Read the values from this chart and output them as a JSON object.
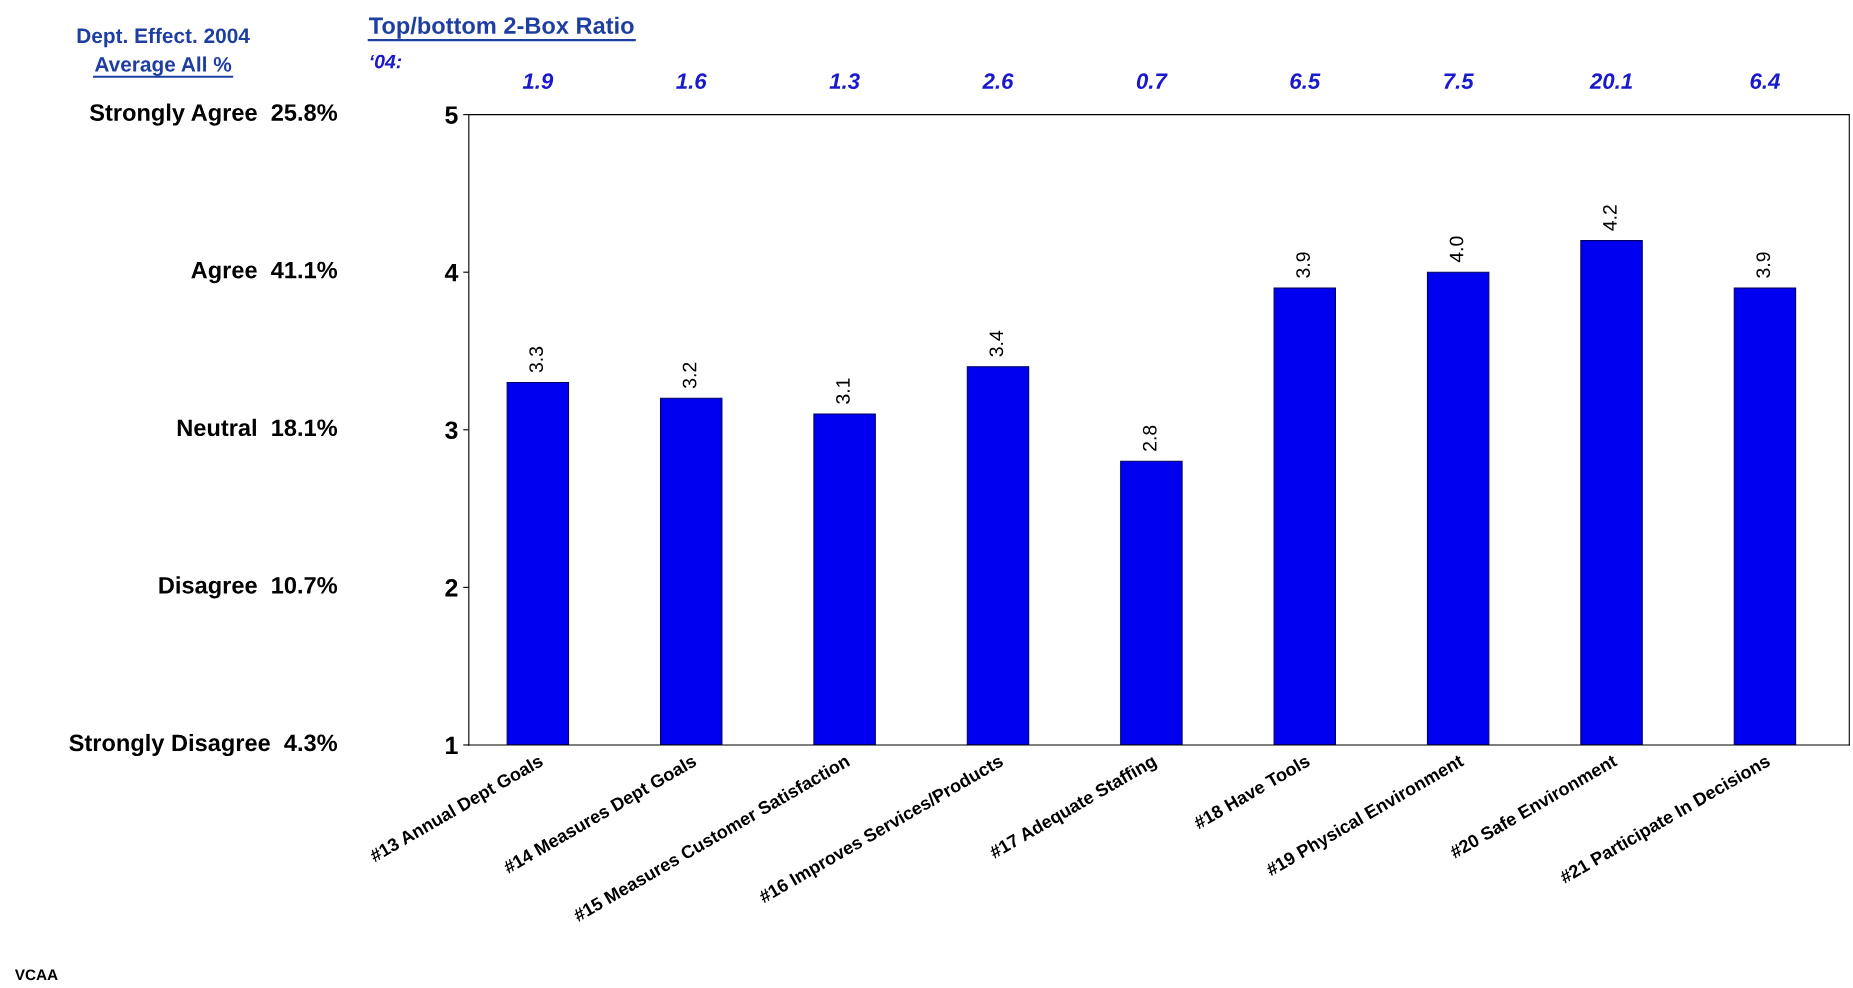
{
  "chart_data": {
    "type": "bar",
    "categories": [
      "#13 Annual Dept Goals",
      "#14 Measures Dept Goals",
      "#15 Measures Customer Satisfaction",
      "#16 Improves Services/Products",
      "#17 Adequate Staffing",
      "#18 Have Tools",
      "#19 Physical Environment",
      "#20 Safe Environment",
      "#21 Participate In Decisions"
    ],
    "values": [
      3.3,
      3.2,
      3.1,
      3.4,
      2.8,
      3.9,
      4.0,
      4.2,
      3.9
    ],
    "value_labels": [
      "3.3",
      "3.2",
      "3.1",
      "3.4",
      "2.8",
      "3.9",
      "4.0",
      "4.2",
      "3.9"
    ],
    "color": "#0000f0",
    "ylim": [
      1,
      5
    ],
    "yticks": [
      1,
      2,
      3,
      4,
      5
    ],
    "grid": false,
    "legend": false,
    "annotations": [
      "Top/bottom 2-Box Ratio",
      "‘04:",
      "Dept. Effect. 2004",
      "Average All %",
      "VCAA",
      "1.9",
      "1.6",
      "1.3",
      "2.6",
      "0.7",
      "6.5",
      "7.5",
      "20.1",
      "6.4",
      "Strongly Agree  25.8%",
      "Agree  41.1%",
      "Neutral  18.1%",
      "Disagree  10.7%",
      "Strongly Disagree  4.3%"
    ]
  }
}
